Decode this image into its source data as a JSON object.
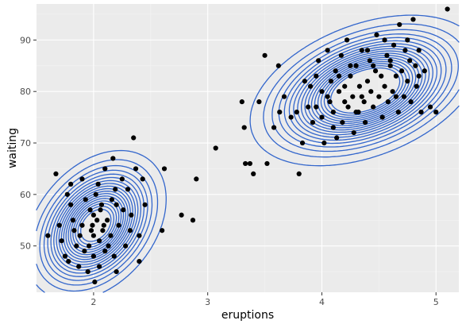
{
  "chart_data": {
    "type": "scatter",
    "title": "",
    "xlabel": "eruptions",
    "ylabel": "waiting",
    "xlim": [
      1.5,
      5.2
    ],
    "ylim": [
      41,
      97
    ],
    "x_ticks": [
      2,
      3,
      4,
      5
    ],
    "y_ticks": [
      50,
      60,
      70,
      80,
      90
    ],
    "grid": true,
    "colors": {
      "panel": "#ebebeb",
      "grid_major": "#ffffff",
      "grid_minor": "#f4f4f4",
      "points": "#000000",
      "contours": "#3366cc"
    },
    "points": [
      [
        1.6,
        52
      ],
      [
        1.67,
        64
      ],
      [
        1.7,
        54
      ],
      [
        1.75,
        48
      ],
      [
        1.78,
        47
      ],
      [
        1.8,
        62
      ],
      [
        1.8,
        58
      ],
      [
        1.82,
        55
      ],
      [
        1.85,
        50
      ],
      [
        1.87,
        46
      ],
      [
        1.9,
        63
      ],
      [
        1.9,
        54
      ],
      [
        1.92,
        49
      ],
      [
        1.95,
        45
      ],
      [
        1.97,
        57
      ],
      [
        1.98,
        53
      ],
      [
        2.0,
        56
      ],
      [
        2.0,
        52
      ],
      [
        2.0,
        48
      ],
      [
        2.02,
        60
      ],
      [
        2.03,
        55
      ],
      [
        2.05,
        51
      ],
      [
        2.05,
        46
      ],
      [
        2.07,
        58
      ],
      [
        2.08,
        53
      ],
      [
        2.1,
        65
      ],
      [
        2.1,
        49
      ],
      [
        2.12,
        55
      ],
      [
        2.15,
        52
      ],
      [
        2.17,
        67
      ],
      [
        2.18,
        48
      ],
      [
        2.2,
        58
      ],
      [
        2.2,
        45
      ],
      [
        2.22,
        54
      ],
      [
        2.25,
        63
      ],
      [
        2.28,
        50
      ],
      [
        2.3,
        61
      ],
      [
        2.33,
        56
      ],
      [
        2.35,
        71
      ],
      [
        2.37,
        65
      ],
      [
        2.4,
        52
      ],
      [
        2.4,
        47
      ],
      [
        2.43,
        63
      ],
      [
        2.45,
        58
      ],
      [
        1.72,
        51
      ],
      [
        1.77,
        60
      ],
      [
        1.83,
        53
      ],
      [
        1.88,
        52
      ],
      [
        1.93,
        59
      ],
      [
        1.96,
        50
      ],
      [
        1.99,
        54
      ],
      [
        2.01,
        43
      ],
      [
        2.04,
        62
      ],
      [
        2.06,
        57
      ],
      [
        2.09,
        54
      ],
      [
        2.13,
        50
      ],
      [
        2.16,
        59
      ],
      [
        2.19,
        61
      ],
      [
        2.26,
        57
      ],
      [
        2.32,
        53
      ],
      [
        2.6,
        53
      ],
      [
        2.62,
        65
      ],
      [
        2.77,
        56
      ],
      [
        2.87,
        55
      ],
      [
        2.9,
        63
      ],
      [
        3.07,
        69
      ],
      [
        3.3,
        78
      ],
      [
        3.32,
        73
      ],
      [
        3.33,
        66
      ],
      [
        3.37,
        66
      ],
      [
        3.4,
        64
      ],
      [
        3.45,
        78
      ],
      [
        3.5,
        87
      ],
      [
        3.52,
        66
      ],
      [
        3.58,
        73
      ],
      [
        3.62,
        85
      ],
      [
        3.63,
        76
      ],
      [
        3.67,
        79
      ],
      [
        3.73,
        75
      ],
      [
        3.78,
        76
      ],
      [
        3.8,
        64
      ],
      [
        3.83,
        70
      ],
      [
        3.85,
        82
      ],
      [
        3.88,
        77
      ],
      [
        3.9,
        81
      ],
      [
        3.92,
        74
      ],
      [
        3.95,
        83
      ],
      [
        3.97,
        86
      ],
      [
        4.0,
        75
      ],
      [
        4.0,
        80
      ],
      [
        4.02,
        70
      ],
      [
        4.05,
        88
      ],
      [
        4.07,
        78
      ],
      [
        4.08,
        82
      ],
      [
        4.1,
        76
      ],
      [
        4.12,
        84
      ],
      [
        4.13,
        71
      ],
      [
        4.15,
        80
      ],
      [
        4.17,
        87
      ],
      [
        4.18,
        74
      ],
      [
        4.2,
        81
      ],
      [
        4.22,
        90
      ],
      [
        4.23,
        77
      ],
      [
        4.25,
        83
      ],
      [
        4.27,
        79
      ],
      [
        4.28,
        72
      ],
      [
        4.3,
        85
      ],
      [
        4.32,
        76
      ],
      [
        4.33,
        81
      ],
      [
        4.35,
        88
      ],
      [
        4.37,
        78
      ],
      [
        4.38,
        74
      ],
      [
        4.4,
        82
      ],
      [
        4.42,
        86
      ],
      [
        4.43,
        80
      ],
      [
        4.45,
        77
      ],
      [
        4.47,
        84
      ],
      [
        4.48,
        91
      ],
      [
        4.5,
        79
      ],
      [
        4.52,
        83
      ],
      [
        4.53,
        75
      ],
      [
        4.55,
        81
      ],
      [
        4.57,
        87
      ],
      [
        4.58,
        78
      ],
      [
        4.6,
        85
      ],
      [
        4.62,
        80
      ],
      [
        4.63,
        89
      ],
      [
        4.65,
        83
      ],
      [
        4.67,
        76
      ],
      [
        4.68,
        93
      ],
      [
        4.7,
        84
      ],
      [
        4.72,
        79
      ],
      [
        4.73,
        88
      ],
      [
        4.75,
        82
      ],
      [
        4.77,
        86
      ],
      [
        4.78,
        78
      ],
      [
        4.8,
        94
      ],
      [
        4.82,
        85
      ],
      [
        4.83,
        81
      ],
      [
        4.85,
        88
      ],
      [
        4.87,
        76
      ],
      [
        4.9,
        84
      ],
      [
        4.95,
        77
      ],
      [
        5.0,
        76
      ],
      [
        5.1,
        96
      ],
      [
        3.95,
        77
      ],
      [
        4.05,
        79
      ],
      [
        4.15,
        83
      ],
      [
        4.25,
        85
      ],
      [
        4.35,
        79
      ],
      [
        4.45,
        85
      ],
      [
        4.55,
        90
      ],
      [
        4.65,
        79
      ],
      [
        4.75,
        90
      ],
      [
        4.85,
        83
      ],
      [
        4.1,
        73
      ],
      [
        4.3,
        76
      ],
      [
        4.4,
        88
      ],
      [
        4.6,
        86
      ],
      [
        4.2,
        78
      ]
    ],
    "contours": {
      "centers": [
        [
          2.02,
          54.0
        ],
        [
          4.38,
          80.2
        ]
      ],
      "note": "2D density contours; two modes"
    }
  }
}
